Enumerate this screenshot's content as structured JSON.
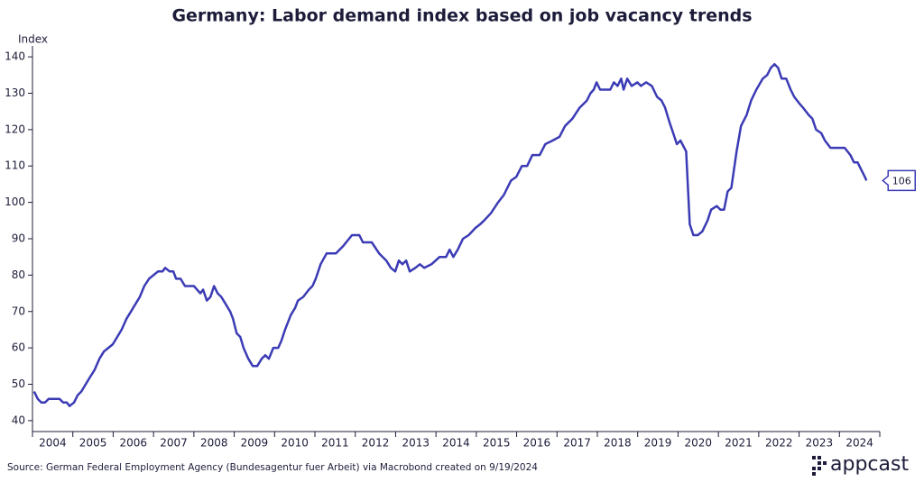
{
  "chart_data": {
    "type": "line",
    "title": "Germany: Labor demand index based on job vacancy trends",
    "y_label": "Index",
    "source": "Source: German Federal Employment Agency (Bundesagentur fuer Arbeit) via Macrobond created on 9/19/2024",
    "logo": "appcast",
    "xlim": [
      2004,
      2025
    ],
    "xticks": [
      2004,
      2005,
      2006,
      2007,
      2008,
      2009,
      2010,
      2011,
      2012,
      2013,
      2014,
      2015,
      2016,
      2017,
      2018,
      2019,
      2020,
      2021,
      2022,
      2023,
      2024
    ],
    "ylim": [
      37,
      143
    ],
    "yticks": [
      40,
      50,
      60,
      70,
      80,
      90,
      100,
      110,
      120,
      130,
      140
    ],
    "x": [
      2004.04,
      2004.13,
      2004.22,
      2004.31,
      2004.4,
      2004.54,
      2004.67,
      2004.76,
      2004.85,
      2004.92,
      2005.03,
      2005.12,
      2005.21,
      2005.32,
      2005.43,
      2005.54,
      2005.66,
      2005.77,
      2005.88,
      2005.99,
      2006.1,
      2006.21,
      2006.33,
      2006.44,
      2006.55,
      2006.66,
      2006.77,
      2006.89,
      2007.0,
      2007.11,
      2007.22,
      2007.29,
      2007.4,
      2007.49,
      2007.56,
      2007.67,
      2007.78,
      2007.89,
      2008.0,
      2008.16,
      2008.23,
      2008.32,
      2008.41,
      2008.5,
      2008.59,
      2008.68,
      2008.79,
      2008.9,
      2008.97,
      2009.06,
      2009.15,
      2009.23,
      2009.35,
      2009.46,
      2009.57,
      2009.68,
      2009.77,
      2009.86,
      2009.97,
      2010.09,
      2010.17,
      2010.26,
      2010.4,
      2010.51,
      2010.58,
      2010.71,
      2010.85,
      2010.94,
      2011.02,
      2011.14,
      2011.29,
      2011.52,
      2011.7,
      2011.92,
      2012.1,
      2012.19,
      2012.41,
      2012.59,
      2012.77,
      2012.88,
      2012.99,
      2013.08,
      2013.17,
      2013.26,
      2013.35,
      2013.49,
      2013.6,
      2013.71,
      2013.89,
      2014.09,
      2014.25,
      2014.34,
      2014.43,
      2014.54,
      2014.67,
      2014.81,
      2014.98,
      2015.1,
      2015.19,
      2015.36,
      2015.54,
      2015.68,
      2015.86,
      2015.99,
      2016.13,
      2016.26,
      2016.39,
      2016.57,
      2016.71,
      2016.89,
      2017.06,
      2017.2,
      2017.38,
      2017.56,
      2017.74,
      2017.83,
      2017.91,
      2017.98,
      2018.07,
      2018.32,
      2018.41,
      2018.5,
      2018.59,
      2018.65,
      2018.74,
      2018.85,
      2018.99,
      2019.08,
      2019.21,
      2019.35,
      2019.48,
      2019.59,
      2019.68,
      2019.79,
      2019.88,
      2019.97,
      2020.06,
      2020.2,
      2020.29,
      2020.38,
      2020.49,
      2020.6,
      2020.73,
      2020.82,
      2020.96,
      2021.05,
      2021.14,
      2021.23,
      2021.32,
      2021.45,
      2021.56,
      2021.7,
      2021.81,
      2021.94,
      2022.1,
      2022.21,
      2022.3,
      2022.39,
      2022.48,
      2022.57,
      2022.68,
      2022.79,
      2022.88,
      2023.02,
      2023.1,
      2023.24,
      2023.33,
      2023.42,
      2023.55,
      2023.64,
      2023.78,
      2024.0,
      2024.13,
      2024.27,
      2024.36,
      2024.45,
      2024.54,
      2024.63,
      2024.67
    ],
    "series": [
      {
        "name": "Labor demand index",
        "color": "#3b3bb5",
        "values": [
          48,
          46,
          45,
          45,
          46,
          46,
          46,
          45,
          45,
          44,
          45,
          47,
          48,
          50,
          52,
          54,
          57,
          59,
          60,
          61,
          63,
          65,
          68,
          70,
          72,
          74,
          77,
          79,
          80,
          81,
          81,
          82,
          81,
          81,
          79,
          79,
          77,
          77,
          77,
          75,
          76,
          73,
          74,
          77,
          75,
          74,
          72,
          70,
          68,
          64,
          63,
          60,
          57,
          55,
          55,
          57,
          58,
          57,
          60,
          60,
          62,
          65,
          69,
          71,
          73,
          74,
          76,
          77,
          79,
          83,
          86,
          86,
          88,
          91,
          91,
          89,
          89,
          86,
          84,
          82,
          81,
          84,
          83,
          84,
          81,
          82,
          83,
          82,
          83,
          85,
          85,
          87,
          85,
          87,
          90,
          91,
          93,
          94,
          95,
          97,
          100,
          102,
          106,
          107,
          110,
          110,
          113,
          113,
          116,
          117,
          118,
          121,
          123,
          126,
          128,
          130,
          131,
          133,
          131,
          131,
          133,
          132,
          134,
          131,
          134,
          132,
          133,
          132,
          133,
          132,
          129,
          128,
          126,
          122,
          119,
          116,
          117,
          114,
          94,
          91,
          91,
          92,
          95,
          98,
          99,
          98,
          98,
          103,
          104,
          114,
          121,
          124,
          128,
          131,
          134,
          135,
          137,
          138,
          137,
          134,
          134,
          131,
          129,
          127,
          126,
          124,
          123,
          120,
          119,
          117,
          115,
          115,
          115,
          113,
          111,
          111,
          109,
          107,
          106
        ]
      }
    ]
  }
}
